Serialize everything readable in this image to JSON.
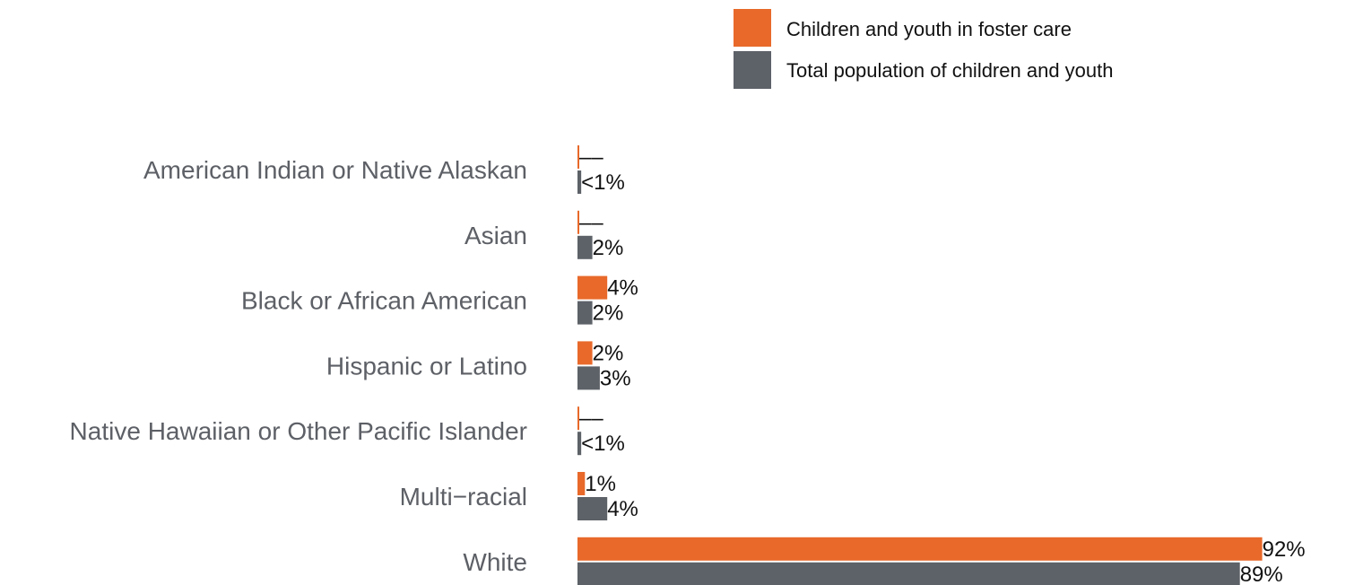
{
  "chart_data": {
    "type": "bar",
    "orientation": "horizontal",
    "categories": [
      "American Indian or Native Alaskan",
      "Asian",
      "Black or African American",
      "Hispanic or Latino",
      "Native Hawaiian or Other Pacific Islander",
      "Multi−racial",
      "White"
    ],
    "series": [
      {
        "name": "Children and youth in foster care",
        "color": "#e8692a",
        "values": [
          0,
          0,
          4,
          2,
          0,
          1,
          92
        ],
        "labels": [
          "––",
          "––",
          "4%",
          "2%",
          "––",
          "1%",
          "92%"
        ]
      },
      {
        "name": "Total population of children and youth",
        "color": "#5d6168",
        "values": [
          0.5,
          2,
          2,
          3,
          0.5,
          4,
          89
        ],
        "labels": [
          "<1%",
          "2%",
          "2%",
          "3%",
          "<1%",
          "4%",
          "89%"
        ]
      }
    ],
    "xlim": [
      0,
      100
    ],
    "grid": false,
    "legend_position": "top-right"
  }
}
